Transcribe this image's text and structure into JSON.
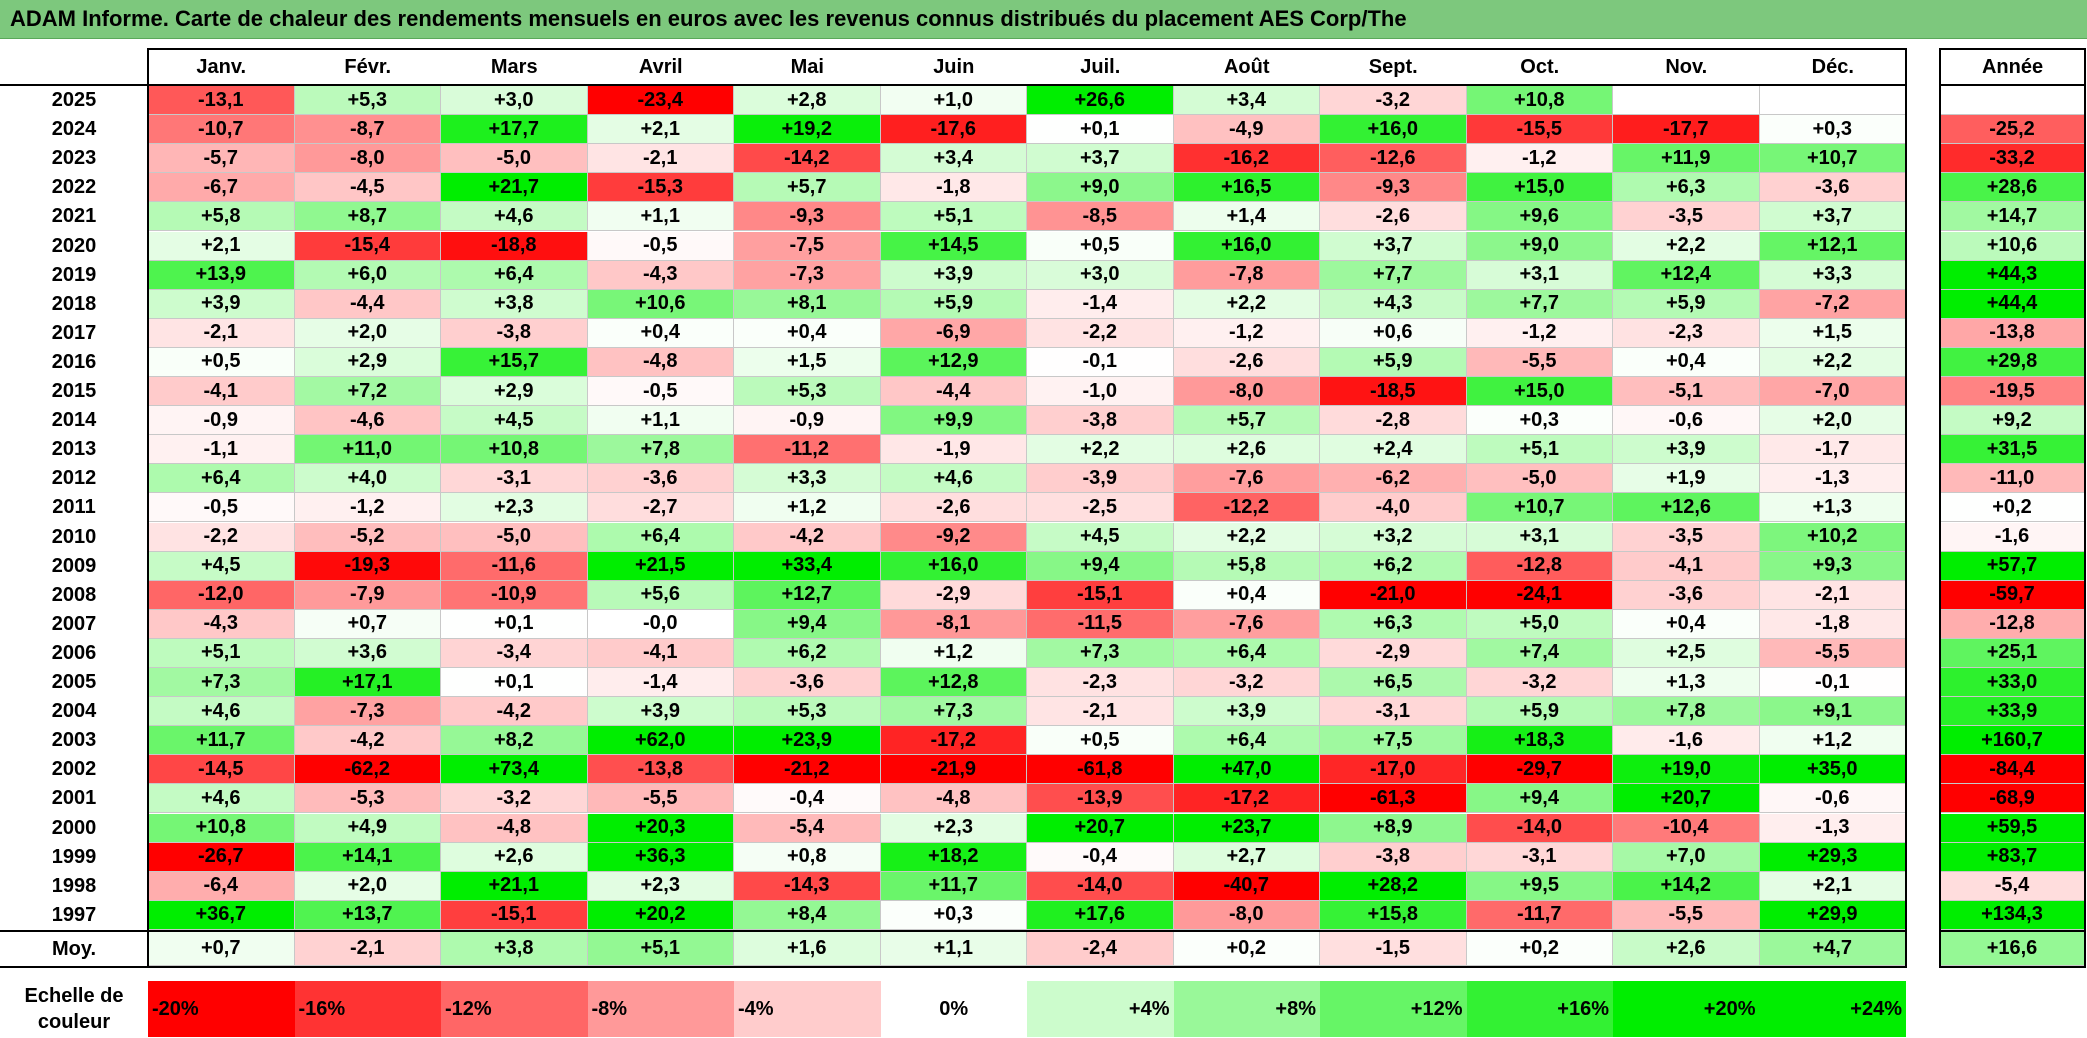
{
  "title": "ADAM Informe. Carte de chaleur des rendements mensuels en euros avec les revenus connus distribués du placement AES Corp/The",
  "chart_data": {
    "type": "heatmap",
    "months": [
      "Janv.",
      "Févr.",
      "Mars",
      "Avril",
      "Mai",
      "Juin",
      "Juil.",
      "Août",
      "Sept.",
      "Oct.",
      "Nov.",
      "Déc."
    ],
    "annual_header": "Année",
    "average_label": "Moy.",
    "rows": [
      {
        "year": "2025",
        "values": [
          "-13,1",
          "+5,3",
          "+3,0",
          "-23,4",
          "+2,8",
          "+1,0",
          "+26,6",
          "+3,4",
          "-3,2",
          "+10,8",
          "",
          ""
        ],
        "annual": ""
      },
      {
        "year": "2024",
        "values": [
          "-10,7",
          "-8,7",
          "+17,7",
          "+2,1",
          "+19,2",
          "-17,6",
          "+0,1",
          "-4,9",
          "+16,0",
          "-15,5",
          "-17,7",
          "+0,3"
        ],
        "annual": "-25,2"
      },
      {
        "year": "2023",
        "values": [
          "-5,7",
          "-8,0",
          "-5,0",
          "-2,1",
          "-14,2",
          "+3,4",
          "+3,7",
          "-16,2",
          "-12,6",
          "-1,2",
          "+11,9",
          "+10,7"
        ],
        "annual": "-33,2"
      },
      {
        "year": "2022",
        "values": [
          "-6,7",
          "-4,5",
          "+21,7",
          "-15,3",
          "+5,7",
          "-1,8",
          "+9,0",
          "+16,5",
          "-9,3",
          "+15,0",
          "+6,3",
          "-3,6"
        ],
        "annual": "+28,6"
      },
      {
        "year": "2021",
        "values": [
          "+5,8",
          "+8,7",
          "+4,6",
          "+1,1",
          "-9,3",
          "+5,1",
          "-8,5",
          "+1,4",
          "-2,6",
          "+9,6",
          "-3,5",
          "+3,7"
        ],
        "annual": "+14,7"
      },
      {
        "year": "2020",
        "values": [
          "+2,1",
          "-15,4",
          "-18,8",
          "-0,5",
          "-7,5",
          "+14,5",
          "+0,5",
          "+16,0",
          "+3,7",
          "+9,0",
          "+2,2",
          "+12,1"
        ],
        "annual": "+10,6"
      },
      {
        "year": "2019",
        "values": [
          "+13,9",
          "+6,0",
          "+6,4",
          "-4,3",
          "-7,3",
          "+3,9",
          "+3,0",
          "-7,8",
          "+7,7",
          "+3,1",
          "+12,4",
          "+3,3"
        ],
        "annual": "+44,3"
      },
      {
        "year": "2018",
        "values": [
          "+3,9",
          "-4,4",
          "+3,8",
          "+10,6",
          "+8,1",
          "+5,9",
          "-1,4",
          "+2,2",
          "+4,3",
          "+7,7",
          "+5,9",
          "-7,2"
        ],
        "annual": "+44,4"
      },
      {
        "year": "2017",
        "values": [
          "-2,1",
          "+2,0",
          "-3,8",
          "+0,4",
          "+0,4",
          "-6,9",
          "-2,2",
          "-1,2",
          "+0,6",
          "-1,2",
          "-2,3",
          "+1,5"
        ],
        "annual": "-13,8"
      },
      {
        "year": "2016",
        "values": [
          "+0,5",
          "+2,9",
          "+15,7",
          "-4,8",
          "+1,5",
          "+12,9",
          "-0,1",
          "-2,6",
          "+5,9",
          "-5,5",
          "+0,4",
          "+2,2"
        ],
        "annual": "+29,8"
      },
      {
        "year": "2015",
        "values": [
          "-4,1",
          "+7,2",
          "+2,9",
          "-0,5",
          "+5,3",
          "-4,4",
          "-1,0",
          "-8,0",
          "-18,5",
          "+15,0",
          "-5,1",
          "-7,0"
        ],
        "annual": "-19,5"
      },
      {
        "year": "2014",
        "values": [
          "-0,9",
          "-4,6",
          "+4,5",
          "+1,1",
          "-0,9",
          "+9,9",
          "-3,8",
          "+5,7",
          "-2,8",
          "+0,3",
          "-0,6",
          "+2,0"
        ],
        "annual": "+9,2"
      },
      {
        "year": "2013",
        "values": [
          "-1,1",
          "+11,0",
          "+10,8",
          "+7,8",
          "-11,2",
          "-1,9",
          "+2,2",
          "+2,6",
          "+2,4",
          "+5,1",
          "+3,9",
          "-1,7"
        ],
        "annual": "+31,5"
      },
      {
        "year": "2012",
        "values": [
          "+6,4",
          "+4,0",
          "-3,1",
          "-3,6",
          "+3,3",
          "+4,6",
          "-3,9",
          "-7,6",
          "-6,2",
          "-5,0",
          "+1,9",
          "-1,3"
        ],
        "annual": "-11,0"
      },
      {
        "year": "2011",
        "values": [
          "-0,5",
          "-1,2",
          "+2,3",
          "-2,7",
          "+1,2",
          "-2,6",
          "-2,5",
          "-12,2",
          "-4,0",
          "+10,7",
          "+12,6",
          "+1,3"
        ],
        "annual": "+0,2"
      },
      {
        "year": "2010",
        "values": [
          "-2,2",
          "-5,2",
          "-5,0",
          "+6,4",
          "-4,2",
          "-9,2",
          "+4,5",
          "+2,2",
          "+3,2",
          "+3,1",
          "-3,5",
          "+10,2"
        ],
        "annual": "-1,6"
      },
      {
        "year": "2009",
        "values": [
          "+4,5",
          "-19,3",
          "-11,6",
          "+21,5",
          "+33,4",
          "+16,0",
          "+9,4",
          "+5,8",
          "+6,2",
          "-12,8",
          "-4,1",
          "+9,3"
        ],
        "annual": "+57,7"
      },
      {
        "year": "2008",
        "values": [
          "-12,0",
          "-7,9",
          "-10,9",
          "+5,6",
          "+12,7",
          "-2,9",
          "-15,1",
          "+0,4",
          "-21,0",
          "-24,1",
          "-3,6",
          "-2,1"
        ],
        "annual": "-59,7"
      },
      {
        "year": "2007",
        "values": [
          "-4,3",
          "+0,7",
          "+0,1",
          "-0,0",
          "+9,4",
          "-8,1",
          "-11,5",
          "-7,6",
          "+6,3",
          "+5,0",
          "+0,4",
          "-1,8"
        ],
        "annual": "-12,8"
      },
      {
        "year": "2006",
        "values": [
          "+5,1",
          "+3,6",
          "-3,4",
          "-4,1",
          "+6,2",
          "+1,2",
          "+7,3",
          "+6,4",
          "-2,9",
          "+7,4",
          "+2,5",
          "-5,5"
        ],
        "annual": "+25,1"
      },
      {
        "year": "2005",
        "values": [
          "+7,3",
          "+17,1",
          "+0,1",
          "-1,4",
          "-3,6",
          "+12,8",
          "-2,3",
          "-3,2",
          "+6,5",
          "-3,2",
          "+1,3",
          "-0,1"
        ],
        "annual": "+33,0"
      },
      {
        "year": "2004",
        "values": [
          "+4,6",
          "-7,3",
          "-4,2",
          "+3,9",
          "+5,3",
          "+7,3",
          "-2,1",
          "+3,9",
          "-3,1",
          "+5,9",
          "+7,8",
          "+9,1"
        ],
        "annual": "+33,9"
      },
      {
        "year": "2003",
        "values": [
          "+11,7",
          "-4,2",
          "+8,2",
          "+62,0",
          "+23,9",
          "-17,2",
          "+0,5",
          "+6,4",
          "+7,5",
          "+18,3",
          "-1,6",
          "+1,2"
        ],
        "annual": "+160,7"
      },
      {
        "year": "2002",
        "values": [
          "-14,5",
          "-62,2",
          "+73,4",
          "-13,8",
          "-21,2",
          "-21,9",
          "-61,8",
          "+47,0",
          "-17,0",
          "-29,7",
          "+19,0",
          "+35,0"
        ],
        "annual": "-84,4"
      },
      {
        "year": "2001",
        "values": [
          "+4,6",
          "-5,3",
          "-3,2",
          "-5,5",
          "-0,4",
          "-4,8",
          "-13,9",
          "-17,2",
          "-61,3",
          "+9,4",
          "+20,7",
          "-0,6"
        ],
        "annual": "-68,9"
      },
      {
        "year": "2000",
        "values": [
          "+10,8",
          "+4,9",
          "-4,8",
          "+20,3",
          "-5,4",
          "+2,3",
          "+20,7",
          "+23,7",
          "+8,9",
          "-14,0",
          "-10,4",
          "-1,3"
        ],
        "annual": "+59,5"
      },
      {
        "year": "1999",
        "values": [
          "-26,7",
          "+14,1",
          "+2,6",
          "+36,3",
          "+0,8",
          "+18,2",
          "-0,4",
          "+2,7",
          "-3,8",
          "-3,1",
          "+7,0",
          "+29,3"
        ],
        "annual": "+83,7"
      },
      {
        "year": "1998",
        "values": [
          "-6,4",
          "+2,0",
          "+21,1",
          "+2,3",
          "-14,3",
          "+11,7",
          "-14,0",
          "-40,7",
          "+28,2",
          "+9,5",
          "+14,2",
          "+2,1"
        ],
        "annual": "-5,4"
      },
      {
        "year": "1997",
        "values": [
          "+36,7",
          "+13,7",
          "-15,1",
          "+20,2",
          "+8,4",
          "+0,3",
          "+17,6",
          "-8,0",
          "+15,8",
          "-11,7",
          "-5,5",
          "+29,9"
        ],
        "annual": "+134,3"
      }
    ],
    "average": {
      "values": [
        "+0,7",
        "-2,1",
        "+3,8",
        "+5,1",
        "+1,6",
        "+1,1",
        "-2,4",
        "+0,2",
        "-1,5",
        "+0,2",
        "+2,6",
        "+4,7"
      ],
      "annual": "+16,6"
    },
    "color_scale": {
      "label": "Echelle de couleur",
      "steps": [
        "-20%",
        "-16%",
        "-12%",
        "-8%",
        "-4%",
        "0%",
        "+4%",
        "+8%",
        "+12%",
        "+16%",
        "+20%",
        "+24%"
      ],
      "negative_color": "#ff0000",
      "neutral_color": "#ffffff",
      "positive_color": "#00ee00"
    }
  }
}
